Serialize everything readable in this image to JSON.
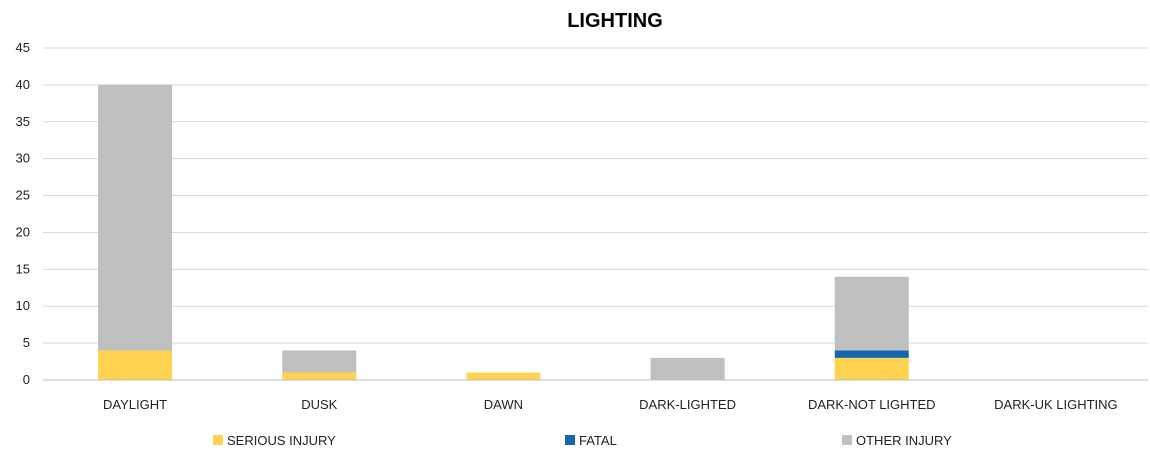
{
  "chart_data": {
    "type": "bar",
    "stacked": true,
    "title": "LIGHTING",
    "categories": [
      "DAYLIGHT",
      "DUSK",
      "DAWN",
      "DARK-LIGHTED",
      "DARK-NOT LIGHTED",
      "DARK-UK LIGHTING"
    ],
    "series": [
      {
        "name": "SERIOUS INJURY",
        "color": "#ffd34f",
        "values": [
          4,
          1,
          1,
          0,
          3,
          0
        ]
      },
      {
        "name": "FATAL",
        "color": "#1565b0",
        "values": [
          0,
          0,
          0,
          0,
          1,
          0
        ]
      },
      {
        "name": "OTHER INJURY",
        "color": "#bfbfbf",
        "values": [
          36,
          3,
          0,
          3,
          10,
          0
        ]
      }
    ],
    "ylim": [
      0,
      45
    ],
    "yticks": [
      0,
      5,
      10,
      15,
      20,
      25,
      30,
      35,
      40,
      45
    ],
    "grid": true,
    "legend": "bottom"
  }
}
